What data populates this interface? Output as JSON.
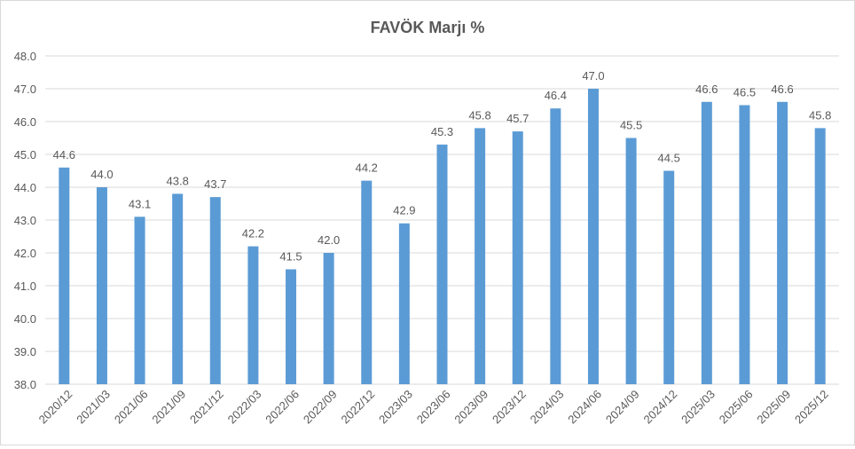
{
  "chart_data": {
    "type": "bar",
    "title": "FAVÖK Marjı %",
    "xlabel": "",
    "ylabel": "",
    "categories": [
      "2020/12",
      "2021/03",
      "2021/06",
      "2021/09",
      "2021/12",
      "2022/03",
      "2022/06",
      "2022/09",
      "2022/12",
      "2023/03",
      "2023/06",
      "2023/09",
      "2023/12",
      "2024/03",
      "2024/06",
      "2024/09",
      "2024/12",
      "2025/03",
      "2025/06",
      "2025/09",
      "2025/12"
    ],
    "values": [
      44.6,
      44.0,
      43.1,
      43.8,
      43.7,
      42.2,
      41.5,
      42.0,
      44.2,
      42.9,
      45.3,
      45.8,
      45.7,
      46.4,
      47.0,
      45.5,
      44.5,
      46.6,
      46.5,
      46.6,
      45.8
    ],
    "data_labels": [
      "44.6",
      "44.0",
      "43.1",
      "43.8",
      "43.7",
      "42.2",
      "41.5",
      "42.0",
      "44.2",
      "42.9",
      "45.3",
      "45.8",
      "45.7",
      "46.4",
      "47.0",
      "45.5",
      "44.5",
      "46.6",
      "46.5",
      "46.6",
      "45.8"
    ],
    "ylim": [
      38.0,
      48.0
    ],
    "yticks": [
      "38.0",
      "39.0",
      "40.0",
      "41.0",
      "42.0",
      "43.0",
      "44.0",
      "45.0",
      "46.0",
      "47.0",
      "48.0"
    ],
    "grid": true,
    "legend": "none",
    "colors": {
      "bar": "#5b9bd5",
      "grid": "#d9d9d9",
      "text": "#595959",
      "title": "#595959"
    }
  }
}
